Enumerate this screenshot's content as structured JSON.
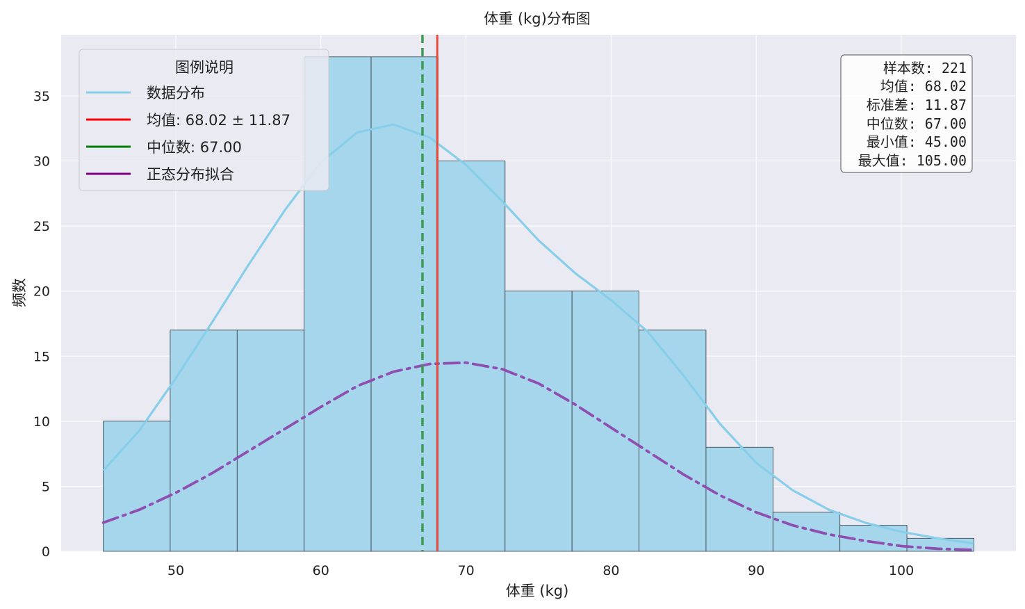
{
  "chart_data": {
    "type": "bar",
    "title": "体重 (kg)分布图",
    "xlabel": "体重 (kg)",
    "ylabel": "频数",
    "xlim": [
      42.1,
      107.9
    ],
    "ylim": [
      0,
      39.7
    ],
    "xticks": [
      50,
      60,
      70,
      80,
      90,
      100
    ],
    "yticks": [
      0,
      5,
      10,
      15,
      20,
      25,
      30,
      35
    ],
    "grid": true,
    "bins": {
      "edges": [
        45.0,
        49.615,
        54.231,
        58.846,
        63.462,
        68.077,
        72.692,
        77.308,
        81.923,
        86.538,
        91.154,
        95.769,
        100.385,
        105.0
      ],
      "counts": [
        10,
        17,
        17,
        38,
        38,
        30,
        20,
        20,
        17,
        8,
        3,
        2,
        1
      ]
    },
    "series": [
      {
        "name": "数据分布",
        "type": "line",
        "x": [
          45,
          47.5,
          50,
          52.5,
          55,
          57.5,
          60,
          62.5,
          65,
          67.5,
          70,
          72.5,
          75,
          77.5,
          80,
          82.5,
          85,
          87.5,
          90,
          92.5,
          95,
          97.5,
          100,
          102.5,
          105
        ],
        "y": [
          6.2,
          9.3,
          13.3,
          17.6,
          22.0,
          26.2,
          29.9,
          32.2,
          32.8,
          31.8,
          29.7,
          26.9,
          23.9,
          21.4,
          19.3,
          16.9,
          13.5,
          9.8,
          6.8,
          4.7,
          3.2,
          2.2,
          1.5,
          1.0,
          0.6
        ]
      },
      {
        "name": "正态分布拟合",
        "type": "line",
        "x": [
          45,
          47.5,
          50,
          52.5,
          55,
          57.5,
          60,
          62.5,
          65,
          67.5,
          70,
          72.5,
          75,
          77.5,
          80,
          82.5,
          85,
          87.5,
          90,
          92.5,
          95,
          97.5,
          100,
          102.5,
          105
        ],
        "y": [
          2.2,
          3.2,
          4.5,
          6.0,
          7.7,
          9.4,
          11.1,
          12.7,
          13.8,
          14.4,
          14.5,
          14.0,
          12.9,
          11.3,
          9.5,
          7.7,
          5.9,
          4.3,
          3.0,
          2.0,
          1.3,
          0.8,
          0.4,
          0.2,
          0.1
        ]
      }
    ],
    "vlines": [
      {
        "name": "均值",
        "x": 68.02,
        "style": "solid",
        "color": "#e84a3a"
      },
      {
        "name": "中位数",
        "x": 67.0,
        "style": "dashed",
        "color": "#3a9a50"
      }
    ],
    "legend": {
      "title": "图例说明",
      "placement": "top-left",
      "items": [
        {
          "label": "数据分布",
          "color": "#87ceeb"
        },
        {
          "label": "均值: 68.02 ± 11.87",
          "color": "#ff0000"
        },
        {
          "label": "中位数: 67.00",
          "color": "#008000"
        },
        {
          "label": "正态分布拟合",
          "color": "#800080"
        }
      ]
    },
    "stats_box": {
      "placement": "top-right",
      "lines": [
        "样本数: 221",
        "均值: 68.02",
        "标准差: 11.87",
        "中位数: 67.00",
        "最小值: 45.00",
        "最大值: 105.00"
      ]
    }
  },
  "colors": {
    "plot_bg": "#eaeaf2",
    "grid": "#ffffff",
    "bar_fill": "#a6d6ec",
    "bar_edge": "#2f3b45",
    "kde": "#87ceeb",
    "fit": "#8e4fb0",
    "mean": "#e84a3a",
    "median": "#3a9a50"
  }
}
